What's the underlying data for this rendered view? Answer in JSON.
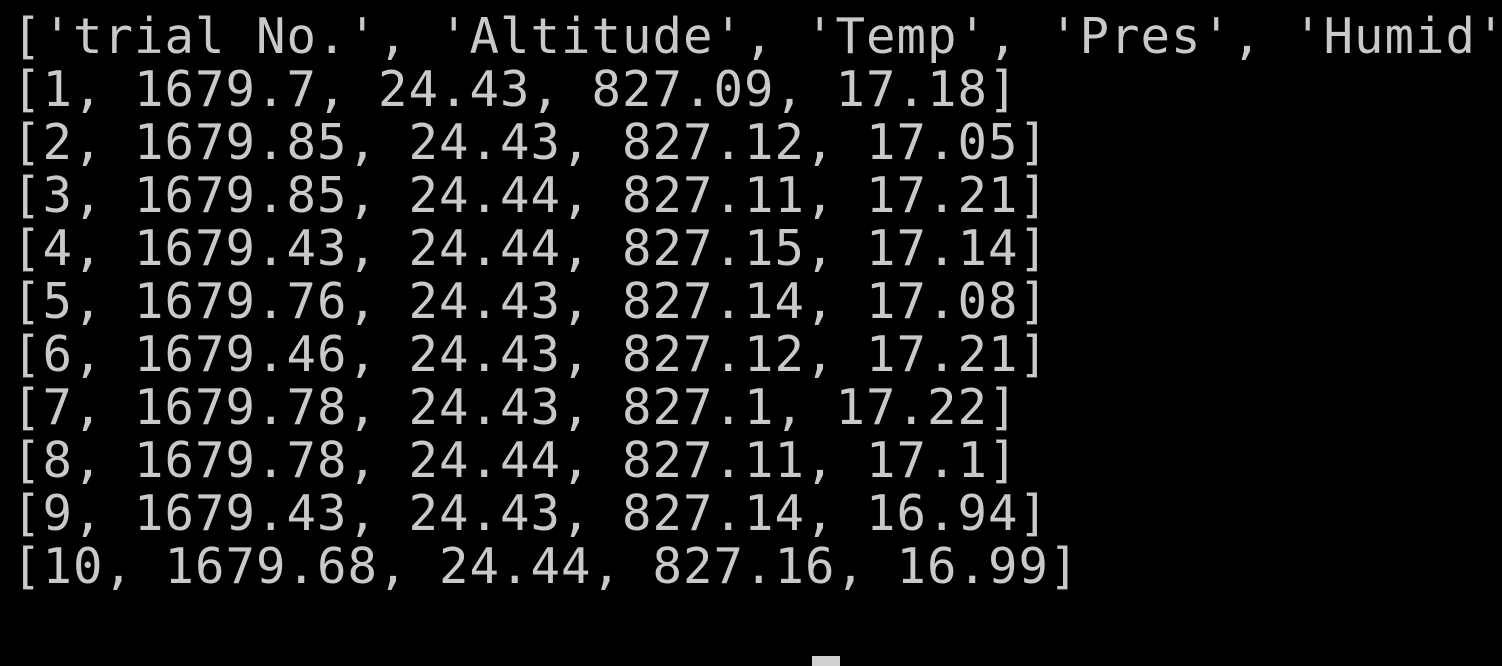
{
  "terminal": {
    "lines": [
      "['trial No.', 'Altitude', 'Temp', 'Pres', 'Humid']",
      "[1, 1679.7, 24.43, 827.09, 17.18]",
      "[2, 1679.85, 24.43, 827.12, 17.05]",
      "[3, 1679.85, 24.44, 827.11, 17.21]",
      "[4, 1679.43, 24.44, 827.15, 17.14]",
      "[5, 1679.76, 24.43, 827.14, 17.08]",
      "[6, 1679.46, 24.43, 827.12, 17.21]",
      "[7, 1679.78, 24.43, 827.1, 17.22]",
      "[8, 1679.78, 24.44, 827.11, 17.1]",
      "[9, 1679.43, 24.43, 827.14, 16.94]",
      "[10, 1679.68, 24.44, 827.16, 16.99]"
    ],
    "background_color": "#000000",
    "text_color": "#c9c9c9"
  }
}
